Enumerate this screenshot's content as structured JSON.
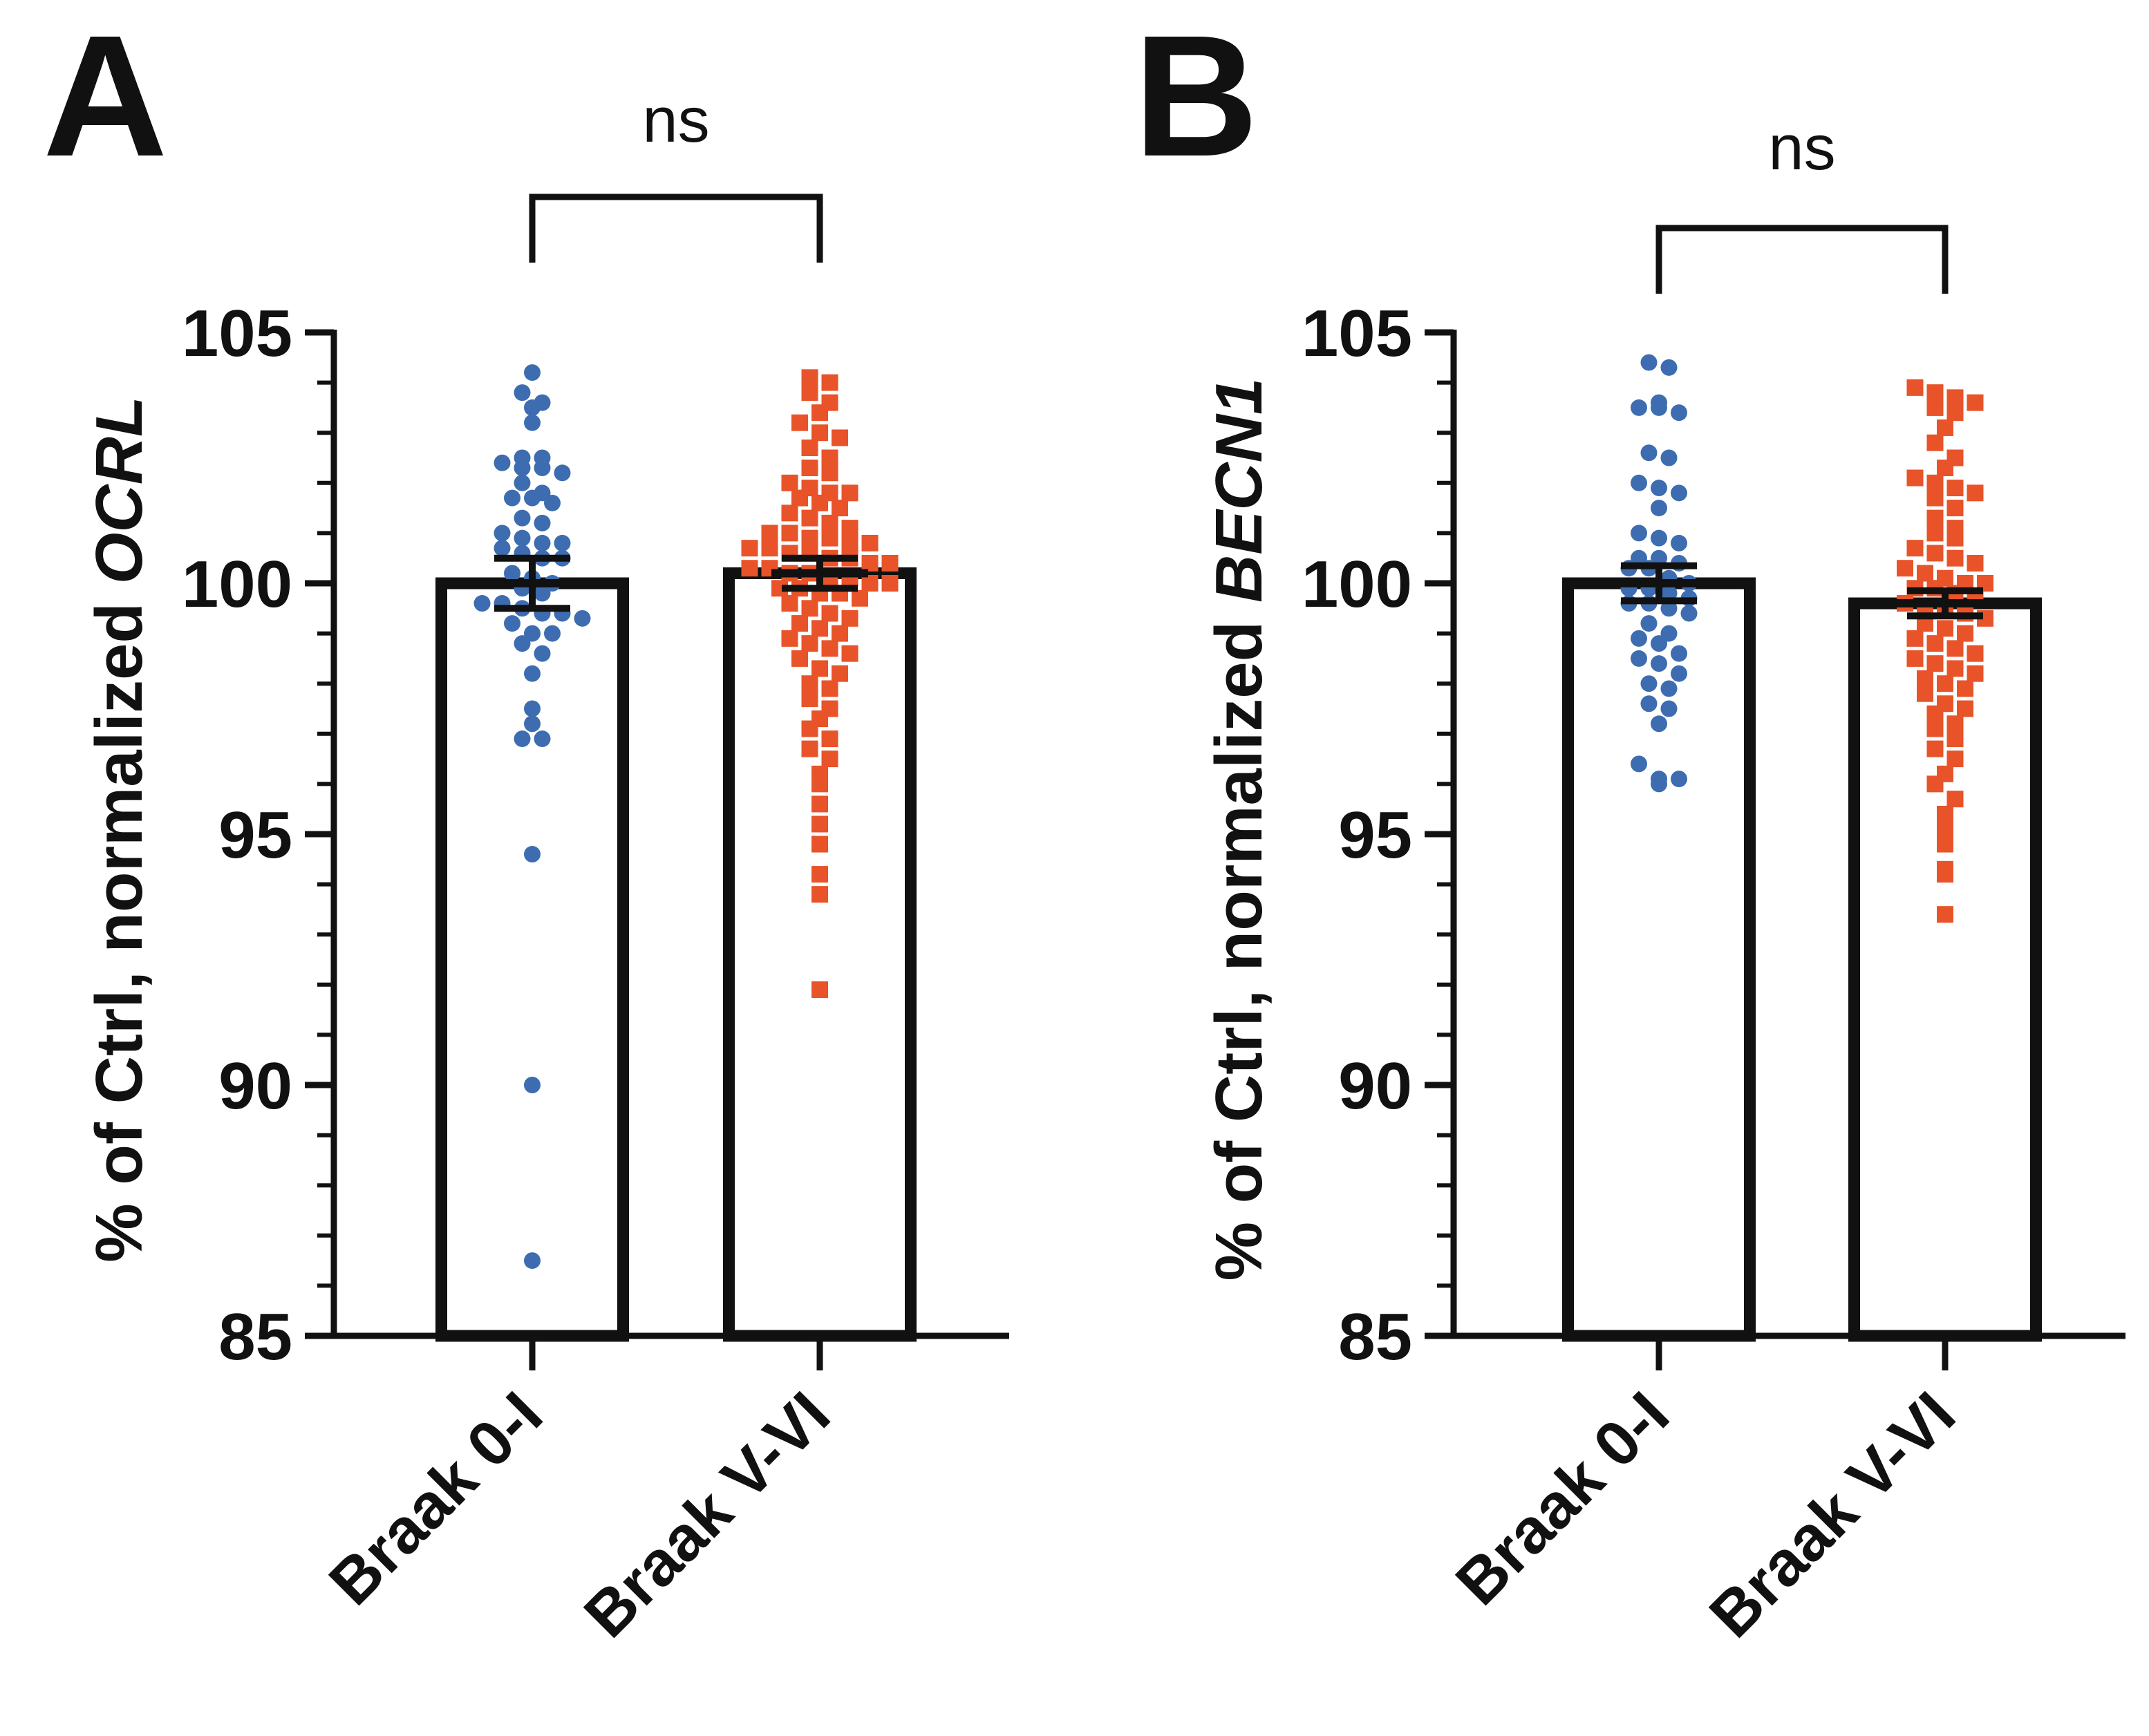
{
  "colors": {
    "braak_0_I": "#3d6db0",
    "braak_V_VI": "#e8532a",
    "axis": "#111111"
  },
  "chart_data": [
    {
      "type": "bar",
      "panel": "A",
      "ylabel_prefix": "% of Ctrl, normalized",
      "ylabel_gene": "OCRL",
      "categories": [
        "Braak 0-I",
        "Braak V-VI"
      ],
      "ylim": [
        85,
        105
      ],
      "yticks": [
        85,
        90,
        95,
        100,
        105
      ],
      "significance": {
        "from": "Braak 0-I",
        "to": "Braak V-VI",
        "label": "ns"
      },
      "series": [
        {
          "name": "Braak 0-I",
          "marker": "circle",
          "mean": 100.0,
          "sem": 0.5,
          "points": [
            104.2,
            103.8,
            103.6,
            103.5,
            103.2,
            102.5,
            102.5,
            102.4,
            102.3,
            102.3,
            102.2,
            102.0,
            101.8,
            101.7,
            101.7,
            101.6,
            101.3,
            101.2,
            101.0,
            100.9,
            100.8,
            100.8,
            100.7,
            100.6,
            100.5,
            100.5,
            100.2,
            100.1,
            100.0,
            99.9,
            99.8,
            99.6,
            99.6,
            99.5,
            99.4,
            99.4,
            99.3,
            99.2,
            99.0,
            99.0,
            98.8,
            98.6,
            98.2,
            97.5,
            97.2,
            96.9,
            96.9,
            94.6,
            90.0,
            86.5
          ]
        },
        {
          "name": "Braak V-VI",
          "marker": "square",
          "mean": 100.2,
          "sem": 0.3,
          "points": [
            104.1,
            104.0,
            103.8,
            103.6,
            103.4,
            103.2,
            103.0,
            102.9,
            102.7,
            102.5,
            102.3,
            102.2,
            102.0,
            101.9,
            101.8,
            101.8,
            101.7,
            101.6,
            101.5,
            101.4,
            101.3,
            101.2,
            101.1,
            101.0,
            101.0,
            100.9,
            100.9,
            100.8,
            100.8,
            100.7,
            100.7,
            100.6,
            100.6,
            100.5,
            100.5,
            100.4,
            100.4,
            100.3,
            100.3,
            100.2,
            100.2,
            100.1,
            100.1,
            100.0,
            100.0,
            99.9,
            99.9,
            99.8,
            99.8,
            99.7,
            99.6,
            99.5,
            99.4,
            99.3,
            99.2,
            99.1,
            99.0,
            98.9,
            98.8,
            98.7,
            98.6,
            98.5,
            98.3,
            98.2,
            98.0,
            97.9,
            97.7,
            97.5,
            97.3,
            97.1,
            96.9,
            96.7,
            96.5,
            96.2,
            96.0,
            95.6,
            95.2,
            94.8,
            94.2,
            93.8,
            91.9
          ]
        }
      ]
    },
    {
      "type": "bar",
      "panel": "B",
      "ylabel_prefix": "% of Ctrl, normalized",
      "ylabel_gene": "BECN1",
      "categories": [
        "Braak 0-I",
        "Braak V-VI"
      ],
      "ylim": [
        85,
        105
      ],
      "yticks": [
        85,
        90,
        95,
        100,
        105
      ],
      "significance": {
        "from": "Braak 0-I",
        "to": "Braak V-VI",
        "label": "ns"
      },
      "series": [
        {
          "name": "Braak 0-I",
          "marker": "circle",
          "mean": 100.0,
          "sem": 0.35,
          "points": [
            104.4,
            104.3,
            103.6,
            103.5,
            103.5,
            103.4,
            102.6,
            102.5,
            102.0,
            101.9,
            101.8,
            101.5,
            101.0,
            100.9,
            100.8,
            100.5,
            100.5,
            100.4,
            100.3,
            100.3,
            100.1,
            100.0,
            99.9,
            99.9,
            99.8,
            99.7,
            99.6,
            99.6,
            99.5,
            99.4,
            99.2,
            99.0,
            98.9,
            98.8,
            98.6,
            98.5,
            98.4,
            98.2,
            98.0,
            97.9,
            97.6,
            97.5,
            97.2,
            96.4,
            96.1,
            96.1,
            96.0
          ]
        },
        {
          "name": "Braak V-VI",
          "marker": "square",
          "mean": 99.6,
          "sem": 0.25,
          "points": [
            103.9,
            103.8,
            103.7,
            103.6,
            103.5,
            103.4,
            103.1,
            102.8,
            102.5,
            102.3,
            102.1,
            102.0,
            101.9,
            101.8,
            101.7,
            101.5,
            101.3,
            101.1,
            101.0,
            100.9,
            100.7,
            100.6,
            100.5,
            100.4,
            100.3,
            100.2,
            100.1,
            100.0,
            100.0,
            99.9,
            99.9,
            99.8,
            99.7,
            99.6,
            99.5,
            99.5,
            99.4,
            99.3,
            99.2,
            99.1,
            99.0,
            98.9,
            98.8,
            98.7,
            98.6,
            98.5,
            98.4,
            98.3,
            98.2,
            98.1,
            98.0,
            97.9,
            97.8,
            97.6,
            97.5,
            97.4,
            97.2,
            97.1,
            96.9,
            96.7,
            96.5,
            96.2,
            96.0,
            95.7,
            95.4,
            95.1,
            94.8,
            94.3,
            94.2,
            93.4
          ]
        }
      ]
    }
  ]
}
